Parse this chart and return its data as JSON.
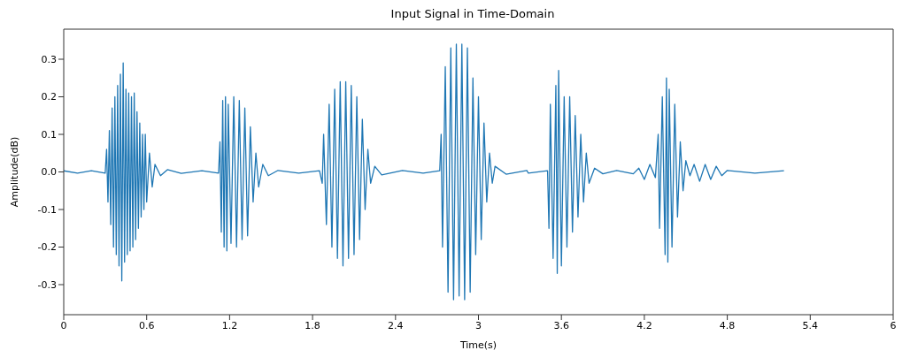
{
  "chart_data": {
    "type": "line",
    "title": "Input Signal in Time-Domain",
    "xlabel": "Time(s)",
    "ylabel": "Amplitude(dB)",
    "xlim": [
      0,
      6
    ],
    "xticks": [
      0,
      0.6,
      1.2,
      1.8,
      2.4,
      3,
      3.6,
      4.2,
      4.8,
      5.4,
      6
    ],
    "ylim": [
      -0.38,
      0.38
    ],
    "yticks": [
      -0.3,
      -0.2,
      -0.1,
      {
        "value": 0,
        "label": "0.0"
      },
      0.1,
      0.2,
      0.3
    ],
    "grid": false,
    "legend": false,
    "marker": "none",
    "line_style": "solid",
    "series": [
      {
        "color": "#1f77b4",
        "x": [
          0,
          0.1,
          0.2,
          0.3,
          0.31,
          0.32,
          0.33,
          0.34,
          0.35,
          0.36,
          0.37,
          0.38,
          0.39,
          0.4,
          0.41,
          0.42,
          0.43,
          0.44,
          0.45,
          0.46,
          0.47,
          0.48,
          0.49,
          0.5,
          0.51,
          0.52,
          0.53,
          0.54,
          0.55,
          0.56,
          0.57,
          0.58,
          0.59,
          0.6,
          0.62,
          0.64,
          0.66,
          0.7,
          0.75,
          0.85,
          1.0,
          1.12,
          1.13,
          1.14,
          1.15,
          1.16,
          1.17,
          1.18,
          1.19,
          1.21,
          1.23,
          1.25,
          1.27,
          1.29,
          1.31,
          1.33,
          1.35,
          1.37,
          1.39,
          1.41,
          1.44,
          1.48,
          1.55,
          1.7,
          1.85,
          1.87,
          1.88,
          1.9,
          1.92,
          1.94,
          1.96,
          1.98,
          2.0,
          2.02,
          2.04,
          2.06,
          2.08,
          2.1,
          2.12,
          2.14,
          2.16,
          2.18,
          2.2,
          2.22,
          2.25,
          2.3,
          2.45,
          2.6,
          2.72,
          2.73,
          2.74,
          2.76,
          2.78,
          2.8,
          2.82,
          2.84,
          2.86,
          2.88,
          2.9,
          2.92,
          2.94,
          2.96,
          2.98,
          3.0,
          3.02,
          3.04,
          3.06,
          3.08,
          3.1,
          3.12,
          3.2,
          3.35,
          3.36,
          3.5,
          3.51,
          3.52,
          3.54,
          3.56,
          3.57,
          3.58,
          3.6,
          3.62,
          3.64,
          3.66,
          3.68,
          3.7,
          3.72,
          3.74,
          3.76,
          3.78,
          3.8,
          3.84,
          3.9,
          4.0,
          4.12,
          4.16,
          4.2,
          4.24,
          4.28,
          4.3,
          4.31,
          4.33,
          4.35,
          4.36,
          4.37,
          4.38,
          4.4,
          4.42,
          4.44,
          4.46,
          4.48,
          4.5,
          4.53,
          4.56,
          4.6,
          4.64,
          4.68,
          4.72,
          4.76,
          4.8,
          5.0,
          5.21
        ],
        "values": [
          0.003,
          -0.003,
          0.003,
          -0.003,
          0.06,
          -0.08,
          0.11,
          -0.14,
          0.17,
          -0.2,
          0.2,
          -0.22,
          0.23,
          -0.25,
          0.26,
          -0.29,
          0.29,
          -0.24,
          0.22,
          -0.22,
          0.21,
          -0.21,
          0.2,
          -0.2,
          0.21,
          -0.18,
          0.16,
          -0.15,
          0.13,
          -0.12,
          0.1,
          -0.1,
          0.1,
          -0.08,
          0.05,
          -0.04,
          0.02,
          -0.01,
          0.006,
          -0.004,
          0.003,
          -0.003,
          0.08,
          -0.16,
          0.19,
          -0.2,
          0.2,
          -0.21,
          0.18,
          -0.19,
          0.2,
          -0.2,
          0.19,
          -0.18,
          0.17,
          -0.17,
          0.12,
          -0.08,
          0.05,
          -0.04,
          0.02,
          -0.01,
          0.004,
          -0.003,
          0.003,
          -0.03,
          0.1,
          -0.14,
          0.18,
          -0.2,
          0.22,
          -0.23,
          0.24,
          -0.25,
          0.24,
          -0.23,
          0.23,
          -0.22,
          0.2,
          -0.18,
          0.14,
          -0.1,
          0.06,
          -0.03,
          0.015,
          -0.008,
          0.004,
          -0.003,
          0.003,
          0.1,
          -0.2,
          0.28,
          -0.32,
          0.33,
          -0.34,
          0.34,
          -0.33,
          0.34,
          -0.34,
          0.33,
          -0.32,
          0.25,
          -0.22,
          0.2,
          -0.18,
          0.13,
          -0.08,
          0.05,
          -0.03,
          0.015,
          -0.006,
          0.004,
          -0.003,
          0.003,
          -0.15,
          0.18,
          -0.23,
          0.23,
          -0.27,
          0.27,
          -0.25,
          0.2,
          -0.2,
          0.2,
          -0.16,
          0.15,
          -0.12,
          0.1,
          -0.08,
          0.05,
          -0.03,
          0.01,
          -0.005,
          0.004,
          -0.005,
          0.01,
          -0.02,
          0.02,
          -0.015,
          0.1,
          -0.15,
          0.2,
          -0.22,
          0.25,
          -0.24,
          0.22,
          -0.2,
          0.18,
          -0.12,
          0.08,
          -0.05,
          0.03,
          -0.01,
          0.02,
          -0.025,
          0.02,
          -0.02,
          0.015,
          -0.01,
          0.004,
          -0.003,
          0.003
        ]
      }
    ]
  }
}
